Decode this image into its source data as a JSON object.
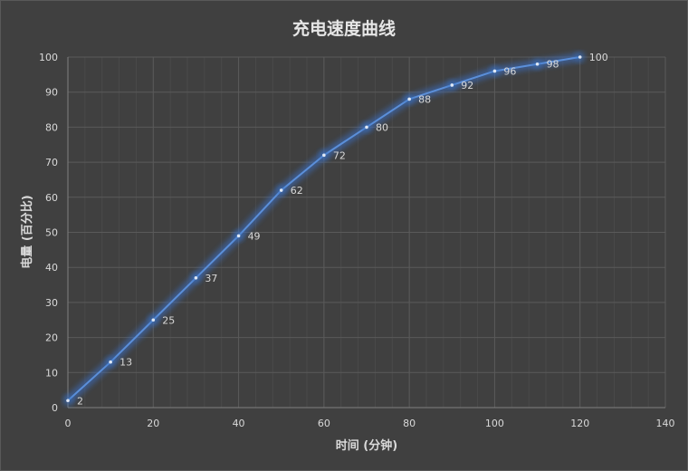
{
  "chart_data": {
    "type": "line",
    "title": "充电速度曲线",
    "xlabel": "时间 (分钟)",
    "ylabel": "电量 (百分比)",
    "x": [
      0,
      10,
      20,
      30,
      40,
      50,
      60,
      70,
      80,
      90,
      100,
      110,
      120
    ],
    "series": [
      {
        "name": "电量",
        "values": [
          2,
          13,
          25,
          37,
          49,
          62,
          72,
          80,
          88,
          92,
          96,
          98,
          100
        ]
      }
    ],
    "xlim": [
      0,
      140
    ],
    "ylim": [
      0,
      100
    ],
    "x_ticks": [
      0,
      20,
      40,
      60,
      80,
      100,
      120,
      140
    ],
    "y_ticks": [
      0,
      10,
      20,
      30,
      40,
      50,
      60,
      70,
      80,
      90,
      100
    ],
    "grid": true,
    "data_labels": true,
    "legend": "none"
  },
  "colors": {
    "background": "#404040",
    "grid_major": "#5a5a5a",
    "grid_minor": "#4a4a4a",
    "axis": "#7f7f7f",
    "line": "#5b8fd9",
    "glow": "#3a6fc4",
    "text": "#d9d9d9",
    "title": "#e6e6e6"
  }
}
